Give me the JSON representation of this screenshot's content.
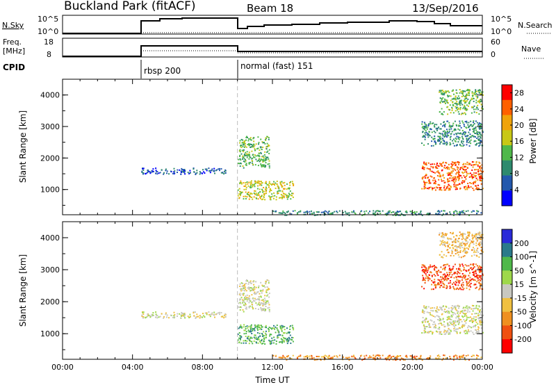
{
  "header": {
    "station": "Buckland Park (fitACF)",
    "beam": "Beam 18",
    "date": "13/Sep/2016"
  },
  "panels": {
    "nsky_label": "N.Sky",
    "nsky_tick_top": "10^5",
    "nsky_tick_bottom": "10^0",
    "nsearch_label": "N.Search",
    "freq_label_1": "Freq.",
    "freq_label_2": "[MHz]",
    "freq_tick_top": "18",
    "freq_tick_bottom": "8",
    "nave_label": "Nave",
    "nave_tick_top": "60",
    "nave_tick_bottom": "0",
    "cpid_label": "CPID",
    "cpid_segments": [
      {
        "label": "rbsp 200",
        "start_hour": 4.5
      },
      {
        "label": "normal (fast) 151",
        "start_hour": 10.0
      }
    ]
  },
  "chart_data": [
    {
      "type": "heatmap",
      "name": "power",
      "xlabel": "",
      "ylabel": "Slant Range [km]",
      "xlim": [
        0,
        24
      ],
      "ylim": [
        200,
        4500
      ],
      "yticks": [
        "1000",
        "2000",
        "3000",
        "4000"
      ],
      "colorbar_label": "Power [dB]",
      "colorbar_ticks": [
        "4",
        "8",
        "12",
        "16",
        "20",
        "24",
        "28"
      ],
      "colorbar_range": [
        0,
        30
      ],
      "colors": [
        "#0000ff",
        "#2358ad",
        "#2e8a6e",
        "#4fb84a",
        "#c8c816",
        "#f0a30a",
        "#ff6000",
        "#ff0000"
      ],
      "scatter_regions": [
        {
          "t0": 4.5,
          "t1": 9.3,
          "r0": 1500,
          "r1": 1700,
          "level": 1
        },
        {
          "t0": 10.0,
          "t1": 11.8,
          "r0": 1700,
          "r1": 2700,
          "level": 3
        },
        {
          "t0": 10.0,
          "t1": 13.2,
          "r0": 700,
          "r1": 1300,
          "level": 4
        },
        {
          "t0": 12.0,
          "t1": 24.0,
          "r0": 200,
          "r1": 350,
          "level": 2
        },
        {
          "t0": 20.5,
          "t1": 24.0,
          "r0": 1000,
          "r1": 1900,
          "level": 6
        },
        {
          "t0": 20.5,
          "t1": 24.0,
          "r0": 2400,
          "r1": 3200,
          "level": 2
        },
        {
          "t0": 21.5,
          "t1": 24.0,
          "r0": 3400,
          "r1": 4200,
          "level": 3
        }
      ]
    },
    {
      "type": "heatmap",
      "name": "velocity",
      "xlabel": "Time UT",
      "ylabel": "Slant Range [km]",
      "xlim": [
        0,
        24
      ],
      "ylim": [
        200,
        4500
      ],
      "xticks": [
        "00:00",
        "04:00",
        "08:00",
        "12:00",
        "16:00",
        "20:00",
        "00:00"
      ],
      "yticks": [
        "1000",
        "2000",
        "3000",
        "4000"
      ],
      "colorbar_label": "Velocity [m s^-1]",
      "colorbar_ticks": [
        "200",
        "100",
        "50",
        "15",
        "-15",
        "-50",
        "-100",
        "-200"
      ],
      "colors": [
        "#2a2ad8",
        "#2a7a8a",
        "#4fb84a",
        "#9ed84a",
        "#c8c8c0",
        "#f0c040",
        "#f09020",
        "#f05010",
        "#ff0000"
      ],
      "scatter_regions": [
        {
          "t0": 4.5,
          "t1": 9.3,
          "r0": 1500,
          "r1": 1700,
          "level": 4
        },
        {
          "t0": 10.0,
          "t1": 11.8,
          "r0": 1700,
          "r1": 2700,
          "level": 4
        },
        {
          "t0": 10.0,
          "t1": 13.2,
          "r0": 700,
          "r1": 1300,
          "level": 2
        },
        {
          "t0": 12.0,
          "t1": 24.0,
          "r0": 200,
          "r1": 350,
          "level": 6
        },
        {
          "t0": 20.5,
          "t1": 24.0,
          "r0": 1000,
          "r1": 1900,
          "level": 4
        },
        {
          "t0": 20.5,
          "t1": 24.0,
          "r0": 2400,
          "r1": 3200,
          "level": 7
        },
        {
          "t0": 21.5,
          "t1": 24.0,
          "r0": 3400,
          "r1": 4200,
          "level": 5
        }
      ]
    }
  ]
}
